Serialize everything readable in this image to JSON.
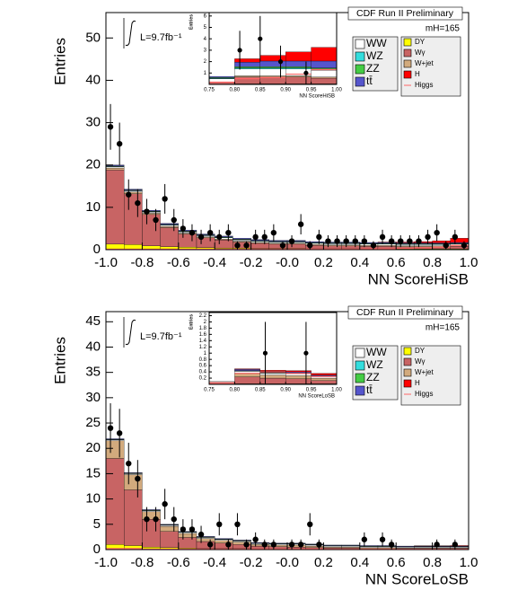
{
  "chart_data": [
    {
      "type": "histogram",
      "header": "CDF Run II Preliminary",
      "lumi": "L=9.7fb⁻¹",
      "mass": "mH=165",
      "xlabel": "NN ScoreHiSB",
      "ylabel": "Entries",
      "xlim": [
        -1,
        1
      ],
      "ylim": [
        0,
        56
      ],
      "xticks": [
        {
          "value": -1,
          "label": "-1.0"
        },
        {
          "value": -0.8,
          "label": "-0.8"
        },
        {
          "value": -0.6,
          "label": "-0.6"
        },
        {
          "value": -0.4,
          "label": "-0.4"
        },
        {
          "value": -0.2,
          "label": "-0.2"
        },
        {
          "value": 0,
          "label": "-0.0"
        },
        {
          "value": 0.2,
          "label": "0.2"
        },
        {
          "value": 0.4,
          "label": "0.4"
        },
        {
          "value": 0.6,
          "label": "0.6"
        },
        {
          "value": 0.8,
          "label": "0.8"
        },
        {
          "value": 1,
          "label": "1.0"
        }
      ],
      "yticks": [
        0,
        10,
        20,
        30,
        40,
        50
      ],
      "bins": [
        -1,
        -0.9,
        -0.8,
        -0.7,
        -0.6,
        -0.5,
        -0.4,
        -0.3,
        -0.2,
        -0.1,
        0,
        0.1,
        0.2,
        0.3,
        0.4,
        0.5,
        0.6,
        0.7,
        0.8,
        0.9,
        1
      ],
      "series": [
        {
          "name": "WW",
          "color": "#ffffff",
          "values": [
            0.3,
            0.3,
            0.3,
            0.3,
            0.3,
            0.3,
            0.3,
            0.3,
            0.3,
            0.3,
            0.3,
            0.3,
            0.3,
            0.3,
            0.3,
            0.3,
            0.3,
            0.3,
            0.3,
            0.3
          ]
        },
        {
          "name": "WZ",
          "color": "#33dddd",
          "values": [
            0.1,
            0.1,
            0.1,
            0.1,
            0.1,
            0.1,
            0.1,
            0.1,
            0.1,
            0.1,
            0.1,
            0.1,
            0.1,
            0.1,
            0.1,
            0.1,
            0.1,
            0.1,
            0.1,
            0.1
          ]
        },
        {
          "name": "ZZ",
          "color": "#44cc44",
          "values": [
            0.1,
            0.1,
            0.1,
            0.1,
            0.1,
            0.1,
            0.1,
            0.1,
            0.1,
            0.1,
            0.1,
            0.1,
            0.1,
            0.1,
            0.1,
            0.1,
            0.1,
            0.1,
            0.1,
            0.1
          ]
        },
        {
          "name": "tt̄",
          "color": "#5555cc",
          "values": [
            0.2,
            0.2,
            0.2,
            0.2,
            0.2,
            0.2,
            0.2,
            0.2,
            0.2,
            0.2,
            0.2,
            0.2,
            0.2,
            0.2,
            0.2,
            0.2,
            0.2,
            0.2,
            0.2,
            0.2
          ]
        },
        {
          "name": "DY",
          "color": "#ffff00",
          "values": [
            1.3,
            1.2,
            0.9,
            0.7,
            0.6,
            0.5,
            0.4,
            0.4,
            0.3,
            0.3,
            0.3,
            0.2,
            0.2,
            0.2,
            0.2,
            0.2,
            0.2,
            0.2,
            0.2,
            0.2
          ]
        },
        {
          "name": "Wγ",
          "color": "#c86464",
          "values": [
            17.5,
            12,
            7.4,
            4.5,
            3.1,
            2.3,
            1.9,
            1.4,
            1.2,
            1.0,
            1.0,
            0.8,
            0.7,
            0.7,
            0.6,
            0.6,
            0.5,
            0.5,
            0.5,
            0.6
          ]
        },
        {
          "name": "W+jet",
          "color": "#d2aa7d",
          "values": [
            0.5,
            0.4,
            0.3,
            0.3,
            0.2,
            0.2,
            0.2,
            0.2,
            0.2,
            0.2,
            0.2,
            0.2,
            0.2,
            0.2,
            0.2,
            0.2,
            0.2,
            0.2,
            0.2,
            0.2
          ]
        },
        {
          "name": "H",
          "color": "#ff0000",
          "values": [
            0,
            0,
            0,
            0,
            0,
            0,
            0,
            0,
            0,
            0,
            0,
            0,
            0,
            0,
            0,
            0.1,
            0.2,
            0.3,
            0.5,
            1.0
          ]
        }
      ],
      "line": {
        "name": "Higgs",
        "color": "#ff6666",
        "values": [
          0.1,
          0.1,
          0.1,
          0.1,
          0.1,
          0.1,
          0.1,
          0.1,
          0.1,
          0.1,
          0.1,
          0.1,
          0.1,
          0.1,
          0.2,
          0.2,
          0.3,
          0.4,
          0.6,
          1.0
        ]
      },
      "data": {
        "x": [
          -0.975,
          -0.925,
          -0.875,
          -0.825,
          -0.775,
          -0.725,
          -0.675,
          -0.625,
          -0.575,
          -0.525,
          -0.475,
          -0.425,
          -0.375,
          -0.325,
          -0.275,
          -0.225,
          -0.175,
          -0.125,
          -0.075,
          -0.025,
          0.025,
          0.075,
          0.125,
          0.175,
          0.225,
          0.275,
          0.325,
          0.375,
          0.425,
          0.475,
          0.525,
          0.575,
          0.625,
          0.675,
          0.725,
          0.775,
          0.825,
          0.875,
          0.925,
          0.975
        ],
        "values": [
          29,
          25,
          13,
          11,
          9,
          7,
          12,
          7,
          5,
          4,
          3,
          4,
          3,
          4,
          1,
          1,
          3,
          3,
          4,
          1,
          2,
          6,
          1,
          3,
          2,
          2,
          2,
          2,
          2,
          1,
          3,
          2,
          2,
          2,
          2,
          3,
          4,
          1,
          3,
          1
        ],
        "errors": [
          5.4,
          5,
          3.6,
          3.3,
          3,
          2.6,
          3.5,
          2.6,
          2.2,
          2,
          1.7,
          2,
          1.7,
          2,
          1,
          1,
          1.7,
          1.7,
          2,
          1,
          1.4,
          2.4,
          1,
          1.7,
          1.4,
          1.4,
          1.4,
          1.4,
          1.4,
          1,
          1.7,
          1.4,
          1.4,
          1.4,
          1.4,
          1.7,
          2,
          1,
          1.7,
          1
        ]
      },
      "inset": {
        "xlabel": "NN ScoreHiSB",
        "ylabel": "Entries",
        "xlim": [
          0.75,
          1
        ],
        "ylim": [
          0,
          6.3
        ],
        "xticks": [
          0.75,
          {
            "value": 0.8,
            "label": "0.80"
          },
          0.85,
          {
            "value": 0.9,
            "label": "0.90"
          },
          0.95,
          {
            "value": 1,
            "label": "1.00"
          }
        ],
        "yticks": [
          1,
          2,
          3,
          4,
          5,
          6
        ],
        "bins": [
          0.75,
          0.8,
          0.85,
          0.9,
          0.95,
          1
        ],
        "series": [
          {
            "color": "#ffffff",
            "values": [
              0.3,
              0.6,
              0.6,
              0.6,
              0.6
            ]
          },
          {
            "color": "#33dddd",
            "values": [
              0.05,
              0.1,
              0.1,
              0.1,
              0.1
            ]
          },
          {
            "color": "#44cc44",
            "values": [
              0.05,
              0.1,
              0.1,
              0.1,
              0.1
            ]
          },
          {
            "color": "#5555cc",
            "values": [
              0.1,
              0.4,
              0.5,
              0.5,
              0.6
            ]
          },
          {
            "color": "#ffff00",
            "values": [
              0,
              0.05,
              0.05,
              0.05,
              0.05
            ]
          },
          {
            "color": "#c86464",
            "values": [
              0.2,
              0.6,
              0.6,
              0.6,
              0.5
            ]
          },
          {
            "color": "#d2aa7d",
            "values": [
              0,
              0.1,
              0.1,
              0.1,
              0.1
            ]
          },
          {
            "color": "#ff0000",
            "values": [
              0,
              0.3,
              0.5,
              0.8,
              1.2
            ]
          }
        ],
        "line": {
          "color": "#ff6666",
          "values": [
            0.2,
            0.5,
            0.6,
            0.9,
            1.3
          ]
        },
        "data": {
          "x": [
            0.81,
            0.85,
            0.89,
            0.94
          ],
          "values": [
            3,
            4,
            2,
            1
          ],
          "errors": [
            1.7,
            2,
            1.4,
            1
          ]
        }
      }
    },
    {
      "type": "histogram",
      "header": "CDF Run II Preliminary",
      "lumi": "L=9.7fb⁻¹",
      "mass": "mH=165",
      "xlabel": "NN ScoreLoSB",
      "ylabel": "Entries",
      "xlim": [
        -1,
        1
      ],
      "ylim": [
        0,
        47
      ],
      "xticks": [
        {
          "value": -1,
          "label": "-1.0"
        },
        {
          "value": -0.8,
          "label": "-0.8"
        },
        {
          "value": -0.6,
          "label": "-0.6"
        },
        {
          "value": -0.4,
          "label": "-0.4"
        },
        {
          "value": -0.2,
          "label": "-0.2"
        },
        {
          "value": 0,
          "label": "-0.0"
        },
        {
          "value": 0.2,
          "label": "0.2"
        },
        {
          "value": 0.4,
          "label": "0.4"
        },
        {
          "value": 0.6,
          "label": "0.6"
        },
        {
          "value": 0.8,
          "label": "0.8"
        },
        {
          "value": 1,
          "label": "1.0"
        }
      ],
      "yticks": [
        0,
        5,
        10,
        15,
        20,
        25,
        30,
        35,
        40,
        45
      ],
      "bins": [
        -1,
        -0.9,
        -0.8,
        -0.7,
        -0.6,
        -0.5,
        -0.4,
        -0.3,
        -0.2,
        -0.1,
        0,
        0.1,
        0.2,
        0.3,
        0.4,
        0.5,
        0.6,
        0.7,
        0.8,
        0.9,
        1
      ],
      "series": [
        {
          "name": "WW",
          "color": "#ffffff",
          "values": [
            0.2,
            0.2,
            0.2,
            0.2,
            0.2,
            0.2,
            0.2,
            0.2,
            0.2,
            0.2,
            0.2,
            0.2,
            0.2,
            0.2,
            0.2,
            0.2,
            0.2,
            0.2,
            0.2,
            0.2
          ]
        },
        {
          "name": "WZ",
          "color": "#33dddd",
          "values": [
            0.05,
            0.05,
            0.05,
            0.05,
            0.05,
            0.05,
            0.05,
            0.05,
            0.05,
            0.05,
            0.05,
            0.05,
            0.05,
            0.05,
            0.05,
            0.05,
            0.05,
            0.05,
            0.05,
            0.05
          ]
        },
        {
          "name": "ZZ",
          "color": "#44cc44",
          "values": [
            0.05,
            0.05,
            0.05,
            0.05,
            0.05,
            0.05,
            0.05,
            0.05,
            0.05,
            0.05,
            0.05,
            0.05,
            0.05,
            0.05,
            0.05,
            0.05,
            0.05,
            0.05,
            0.05,
            0.05
          ]
        },
        {
          "name": "tt̄",
          "color": "#5555cc",
          "values": [
            0.1,
            0.1,
            0.1,
            0.1,
            0.1,
            0.1,
            0.1,
            0.1,
            0.1,
            0.1,
            0.1,
            0.1,
            0.1,
            0.1,
            0.1,
            0.1,
            0.1,
            0.1,
            0.1,
            0.1
          ]
        },
        {
          "name": "DY",
          "color": "#ffff00",
          "values": [
            1,
            0.8,
            0.5,
            0.4,
            0.3,
            0.2,
            0.2,
            0.2,
            0.1,
            0.1,
            0.1,
            0.1,
            0.1,
            0.1,
            0.1,
            0.1,
            0.1,
            0.1,
            0.1,
            0.1
          ]
        },
        {
          "name": "Wγ",
          "color": "#c86464",
          "values": [
            17,
            11,
            5.5,
            3.2,
            2.1,
            1.4,
            1.1,
            0.8,
            0.6,
            0.5,
            0.4,
            0.3,
            0.2,
            0.2,
            0.1,
            0.1,
            0.1,
            0.1,
            0.1,
            0.1
          ]
        },
        {
          "name": "W+jet",
          "color": "#d2aa7d",
          "values": [
            3.5,
            3,
            1.5,
            1,
            0.8,
            0.6,
            0.5,
            0.5,
            0.3,
            0.3,
            0.4,
            0.3,
            0.2,
            0.2,
            0.2,
            0.2,
            0.1,
            0.1,
            0.1,
            0.1
          ]
        },
        {
          "name": "H",
          "color": "#ff0000",
          "values": [
            0,
            0,
            0,
            0,
            0,
            0,
            0,
            0,
            0,
            0,
            0,
            0,
            0,
            0,
            0,
            0,
            0,
            0.05,
            0.05,
            0.1
          ]
        }
      ],
      "line": {
        "name": "Higgs",
        "color": "#ff6666",
        "values": [
          0.2,
          0.2,
          0.1,
          0.1,
          0.1,
          0.1,
          0.1,
          0.1,
          0.1,
          0.1,
          0.1,
          0.1,
          0.1,
          0.1,
          0.1,
          0.1,
          0.1,
          0.1,
          0.1,
          0.1
        ]
      },
      "data": {
        "x": [
          -0.975,
          -0.925,
          -0.875,
          -0.825,
          -0.775,
          -0.725,
          -0.675,
          -0.625,
          -0.575,
          -0.525,
          -0.475,
          -0.425,
          -0.375,
          -0.325,
          -0.275,
          -0.225,
          -0.175,
          -0.125,
          -0.075,
          0.025,
          0.075,
          0.125,
          0.175,
          0.425,
          0.525,
          0.575,
          0.825,
          0.925
        ],
        "values": [
          24,
          23,
          17,
          14,
          6,
          6,
          9,
          6,
          4,
          4,
          3,
          1,
          5,
          1,
          5,
          1,
          2,
          1,
          1,
          1,
          1,
          5,
          1,
          2,
          2,
          1,
          1,
          1
        ],
        "errors": [
          4.9,
          4.8,
          4.1,
          3.7,
          2.4,
          2.4,
          3,
          2.4,
          2,
          2,
          1.7,
          1,
          2.2,
          1,
          2.2,
          1,
          1.4,
          1,
          1,
          1,
          1,
          2.2,
          1,
          1.4,
          1.4,
          1,
          1,
          1
        ]
      },
      "inset": {
        "xlabel": "NN ScoreLoSB",
        "ylabel": "Entries",
        "xlim": [
          0.75,
          1
        ],
        "ylim": [
          0,
          2.3
        ],
        "xticks": [
          0.75,
          {
            "value": 0.8,
            "label": "0.80"
          },
          0.85,
          {
            "value": 0.9,
            "label": "0.90"
          },
          0.95,
          {
            "value": 1,
            "label": "1.00"
          }
        ],
        "yticks": [
          0.2,
          0.4,
          0.6,
          0.8,
          1,
          1.2,
          1.4,
          1.6,
          1.8,
          2,
          2.2
        ],
        "bins": [
          0.75,
          0.8,
          0.85,
          0.9,
          0.95,
          1
        ],
        "series": [
          {
            "color": "#ffffff",
            "values": [
              0.02,
              0.06,
              0.06,
              0.06,
              0.05
            ]
          },
          {
            "color": "#33dddd",
            "values": [
              0,
              0.01,
              0.01,
              0.01,
              0.01
            ]
          },
          {
            "color": "#44cc44",
            "values": [
              0,
              0.01,
              0.01,
              0.01,
              0.01
            ]
          },
          {
            "color": "#5555cc",
            "values": [
              0,
              0.04,
              0.04,
              0.04,
              0.03
            ]
          },
          {
            "color": "#ffff00",
            "values": [
              0,
              0.02,
              0.02,
              0.02,
              0.02
            ]
          },
          {
            "color": "#c86464",
            "values": [
              0.05,
              0.22,
              0.18,
              0.16,
              0.1
            ]
          },
          {
            "color": "#d2aa7d",
            "values": [
              0.02,
              0.12,
              0.1,
              0.1,
              0.08
            ]
          },
          {
            "color": "#ff0000",
            "values": [
              0,
              0.02,
              0.03,
              0.04,
              0.05
            ]
          }
        ],
        "line": {
          "color": "#ff6666",
          "values": [
            0.05,
            0.35,
            0.4,
            0.35,
            0.25
          ]
        },
        "data": {
          "x": [
            0.86,
            0.94
          ],
          "values": [
            1,
            1
          ],
          "errors": [
            1,
            1
          ]
        }
      }
    }
  ]
}
